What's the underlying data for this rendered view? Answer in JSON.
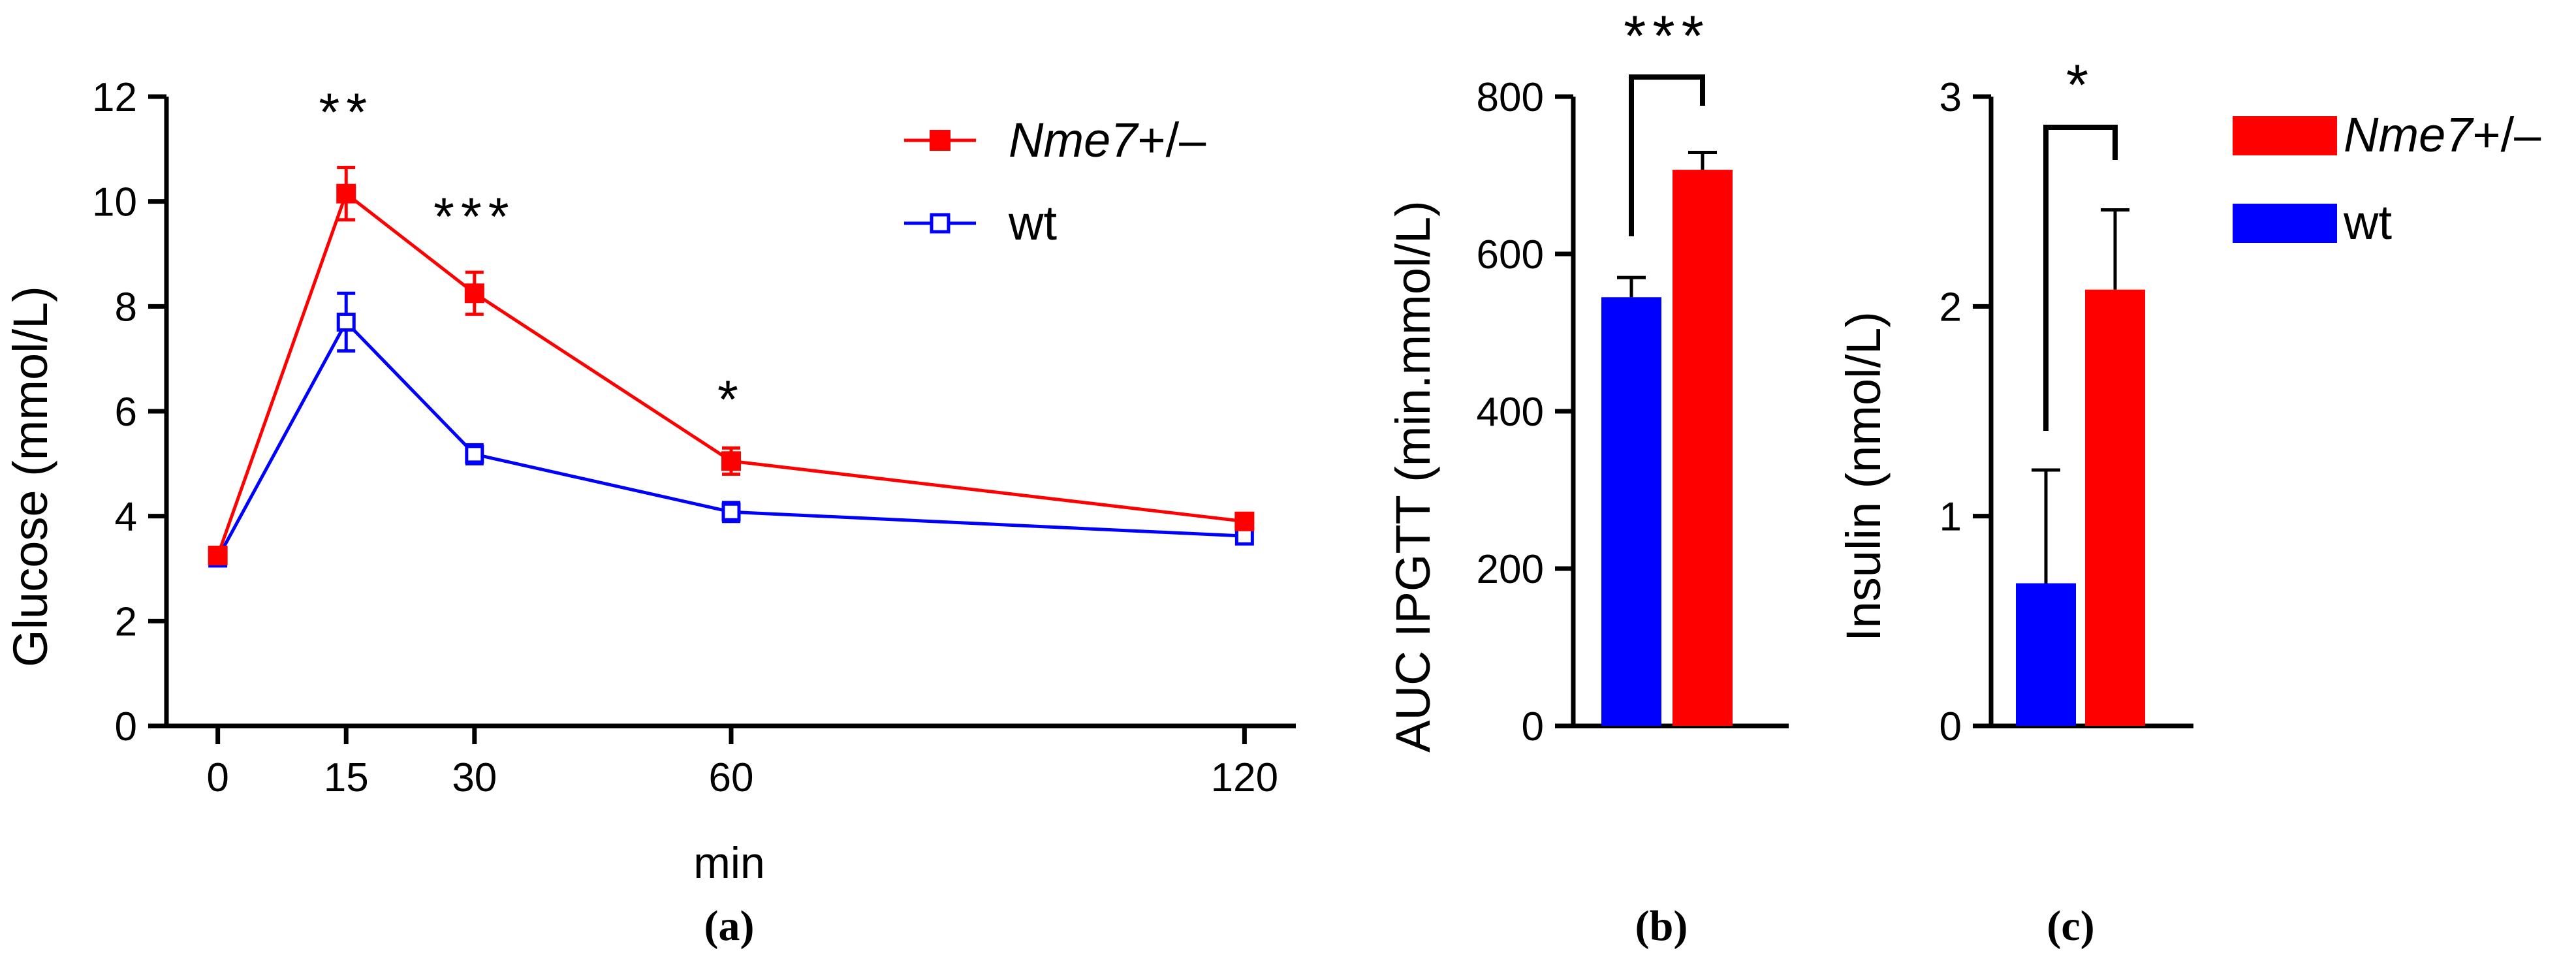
{
  "colors": {
    "nme7": "#ff0000",
    "wt": "#0000ff",
    "axis": "#000000"
  },
  "chart_data": [
    {
      "panel_label": "(a)",
      "type": "line",
      "title": "",
      "xlabel": "min",
      "ylabel": "Glucose (mmol/L)",
      "x": [
        0,
        15,
        30,
        60,
        120
      ],
      "x_ticks": [
        "0",
        "15",
        "30",
        "60",
        "120"
      ],
      "xlim": [
        -6,
        126
      ],
      "ylim": [
        0,
        12
      ],
      "y_ticks": [
        "0",
        "2",
        "4",
        "6",
        "8",
        "10",
        "12"
      ],
      "series": [
        {
          "name": "Nme7+/–",
          "name_italic": "Nme7",
          "name_suffix": "+/–",
          "marker": "filled-square",
          "values": [
            3.25,
            10.15,
            8.25,
            5.05,
            3.9
          ],
          "errors": [
            0.08,
            0.5,
            0.4,
            0.25,
            0.08
          ]
        },
        {
          "name": "wt",
          "marker": "open-square",
          "values": [
            3.2,
            7.7,
            5.18,
            4.08,
            3.62
          ],
          "errors": [
            0.08,
            0.55,
            0.18,
            0.18,
            0.1
          ]
        }
      ],
      "annotations": [
        {
          "x": 15,
          "text": "**"
        },
        {
          "x": 30,
          "text": "***"
        },
        {
          "x": 60,
          "text": "*"
        }
      ],
      "legend": "top-right"
    },
    {
      "panel_label": "(b)",
      "type": "bar",
      "ylabel": "AUC IPGTT (min.mmol/L)",
      "ylim": [
        0,
        800
      ],
      "y_ticks": [
        "0",
        "200",
        "400",
        "600",
        "800"
      ],
      "categories": [
        "wt",
        "Nme7+/–"
      ],
      "values": [
        545,
        707
      ],
      "errors": [
        25,
        22
      ],
      "significance": "***"
    },
    {
      "panel_label": "(c)",
      "type": "bar",
      "ylabel": "Insulin (nmol/L)",
      "ylim": [
        0,
        3
      ],
      "y_ticks": [
        "0",
        "1",
        "2",
        "3"
      ],
      "categories": [
        "wt",
        "Nme7+/–"
      ],
      "values": [
        0.68,
        2.08
      ],
      "errors": [
        0.54,
        0.38
      ],
      "significance": "*",
      "legend": [
        {
          "name_italic": "Nme7",
          "name_suffix": "+/–"
        },
        {
          "name": "wt"
        }
      ]
    }
  ]
}
